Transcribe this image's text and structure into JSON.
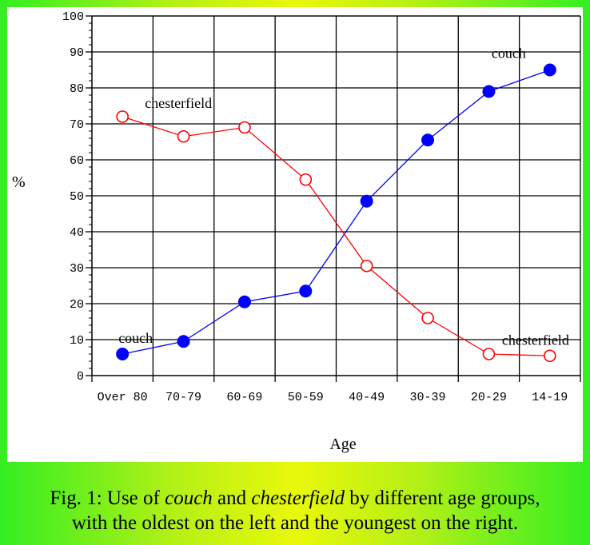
{
  "chart_data": {
    "type": "line",
    "categories": [
      "Over 80",
      "70-79",
      "60-69",
      "50-59",
      "40-49",
      "30-39",
      "20-29",
      "14-19"
    ],
    "series": [
      {
        "name": "couch",
        "color": "#0000ff",
        "marker": "filled-circle",
        "values": [
          6,
          9.5,
          20.5,
          23.5,
          48.5,
          65.5,
          79,
          85
        ]
      },
      {
        "name": "chesterfield",
        "color": "#ff0000",
        "marker": "hollow-circle",
        "values": [
          72,
          66.5,
          69,
          54.5,
          30.5,
          16,
          6,
          5.5
        ]
      }
    ],
    "xlabel": "Age",
    "ylabel": "%",
    "ylim": [
      0,
      100
    ],
    "yticks": [
      0,
      10,
      20,
      30,
      40,
      50,
      60,
      70,
      80,
      90,
      100
    ],
    "grid": true,
    "annotations": [
      {
        "text": "chesterfield",
        "series": "chesterfield",
        "near": "Over 80"
      },
      {
        "text": "couch",
        "series": "couch",
        "near": "Over 80"
      },
      {
        "text": "couch",
        "series": "couch",
        "near": "14-19"
      },
      {
        "text": "chesterfield",
        "series": "chesterfield",
        "near": "14-19"
      }
    ]
  },
  "caption": {
    "prefix": "Fig. 1: Use of ",
    "term1": "couch",
    "middle": " and ",
    "term2": "chesterfield",
    "suffix": " by different age groups,",
    "line2": "with the oldest on the left and the youngest on the right."
  },
  "colors": {
    "panel": "#ffffff",
    "grid": "#000000"
  }
}
